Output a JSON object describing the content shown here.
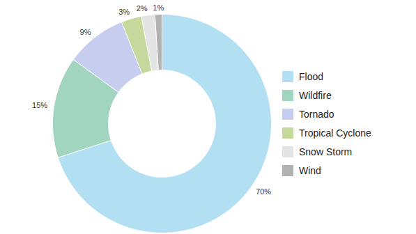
{
  "chart_data": {
    "type": "pie",
    "categories": [
      "Flood",
      "Wildfire",
      "Tornado",
      "Tropical Cyclone",
      "Snow Storm",
      "Wind"
    ],
    "values": [
      70,
      15,
      9,
      3,
      2,
      1
    ],
    "value_labels": [
      "70%",
      "15%",
      "9%",
      "3%",
      "2%",
      "1%"
    ],
    "colors": [
      "#b3dff3",
      "#a2d5bf",
      "#c6cdef",
      "#c7d89c",
      "#e4e4e4",
      "#b1b1b1"
    ],
    "data_labels": true,
    "legend": "right"
  }
}
